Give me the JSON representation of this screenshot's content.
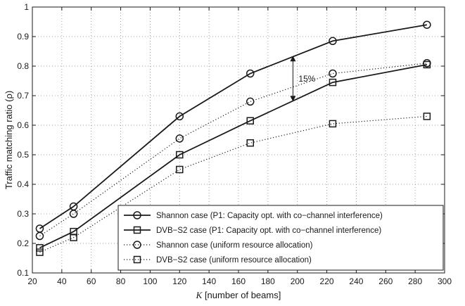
{
  "chart_data": {
    "type": "line",
    "xlabel_var": "K",
    "xlabel_rest": " [number of beams]",
    "ylabel": "Traffic matching ratio (ρ)",
    "xlim": [
      20,
      300
    ],
    "ylim": [
      0.1,
      1.0
    ],
    "xticks": [
      20,
      40,
      60,
      80,
      100,
      120,
      140,
      160,
      180,
      200,
      220,
      240,
      260,
      280,
      300
    ],
    "yticks": [
      0.1,
      0.2,
      0.3,
      0.4,
      0.5,
      0.6,
      0.7,
      0.8,
      0.9,
      1.0
    ],
    "ytick_labels": [
      "0.1",
      "0.2",
      "0.3",
      "0.4",
      "0.5",
      "0.6",
      "0.7",
      "0.8",
      "0.9",
      "1"
    ],
    "grid": true,
    "legend_position": "bottom-right",
    "series": [
      {
        "name": "Shannon case (P1: Capacity opt. with co−channel interference)",
        "line": "solid",
        "marker": "circle",
        "x": [
          25,
          48,
          120,
          168,
          224,
          288
        ],
        "y": [
          0.25,
          0.325,
          0.63,
          0.775,
          0.885,
          0.94
        ]
      },
      {
        "name": "DVB−S2 case  (P1: Capacity opt. with co−channel interference)",
        "line": "solid",
        "marker": "square",
        "x": [
          25,
          48,
          120,
          168,
          224,
          288
        ],
        "y": [
          0.185,
          0.24,
          0.5,
          0.615,
          0.745,
          0.805
        ]
      },
      {
        "name": "Shannon case (uniform resource allocation)",
        "line": "dotted",
        "marker": "circle",
        "x": [
          25,
          48,
          120,
          168,
          224,
          288
        ],
        "y": [
          0.225,
          0.3,
          0.555,
          0.68,
          0.775,
          0.81
        ]
      },
      {
        "name": "DVB−S2 case (uniform resource allocation)",
        "line": "dotted",
        "marker": "square",
        "x": [
          25,
          48,
          120,
          168,
          224,
          288
        ],
        "y": [
          0.17,
          0.22,
          0.45,
          0.54,
          0.605,
          0.63
        ]
      }
    ],
    "annotation": {
      "text": "15%",
      "x": 197,
      "y_top": 0.835,
      "y_bottom": 0.68
    }
  }
}
